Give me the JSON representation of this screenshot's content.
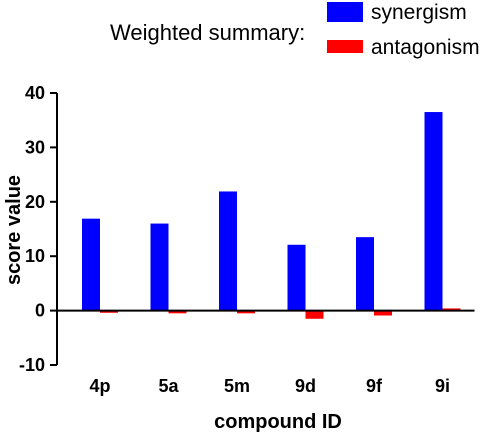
{
  "chart_data": {
    "type": "bar",
    "title": "",
    "legend_title": "Weighted summary:",
    "legend_placement": "top-right",
    "xlabel": "compound ID",
    "ylabel": "score value",
    "ylim": [
      -10,
      40
    ],
    "yticks": [
      -10,
      0,
      10,
      20,
      30,
      40
    ],
    "grid": false,
    "categories": [
      "4p",
      "5a",
      "5m",
      "9d",
      "9f",
      "9i"
    ],
    "series": [
      {
        "name": "synergism",
        "color": "#0000ff",
        "values": [
          16.9,
          16.0,
          21.9,
          12.1,
          13.5,
          36.5
        ]
      },
      {
        "name": "antagonism",
        "color": "#ff0000",
        "values": [
          -0.4,
          -0.5,
          -0.5,
          -1.5,
          -0.9,
          0.4
        ]
      }
    ]
  }
}
